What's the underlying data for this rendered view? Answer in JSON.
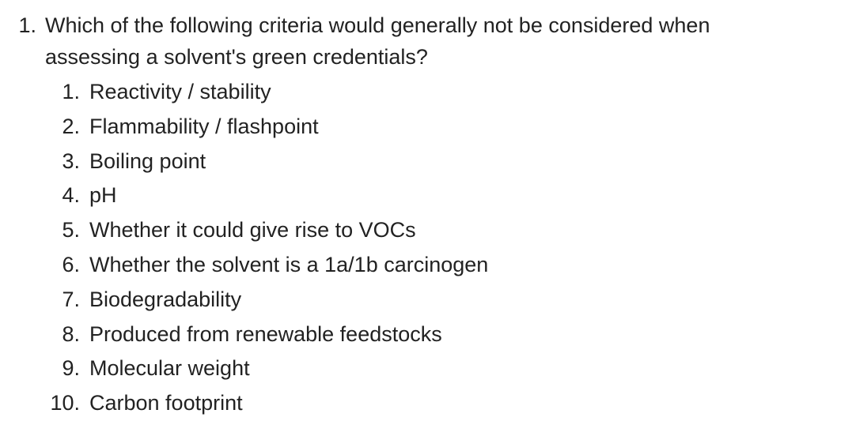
{
  "question": {
    "number": "1.",
    "text_lines": [
      "Which of the following criteria would generally not be considered when",
      "assessing a solvent's green credentials?"
    ],
    "options": [
      {
        "number": "1.",
        "text": "Reactivity / stability"
      },
      {
        "number": "2.",
        "text": "Flammability / flashpoint"
      },
      {
        "number": "3.",
        "text": "Boiling point"
      },
      {
        "number": "4.",
        "text": "pH"
      },
      {
        "number": "5.",
        "text": "Whether it could give rise to VOCs"
      },
      {
        "number": "6.",
        "text": "Whether the solvent is a 1a/1b carcinogen"
      },
      {
        "number": "7.",
        "text": "Biodegradability"
      },
      {
        "number": "8.",
        "text": "Produced from renewable feedstocks"
      },
      {
        "number": "9.",
        "text": "Molecular weight"
      },
      {
        "number": "10.",
        "text": "Carbon footprint"
      }
    ]
  }
}
